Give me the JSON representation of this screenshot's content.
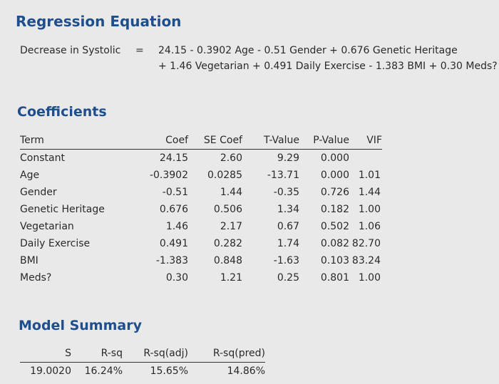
{
  "regression": {
    "title": "Regression Equation",
    "lhs": "Decrease in Systolic",
    "equals": "=",
    "line1": "24.15 - 0.3902 Age - 0.51 Gender + 0.676 Genetic Heritage",
    "line2": "+ 1.46 Vegetarian + 0.491 Daily Exercise - 1.383 BMI + 0.30 Meds?"
  },
  "coefficients": {
    "title": "Coefficients",
    "headers": [
      "Term",
      "Coef",
      "SE Coef",
      "T-Value",
      "P-Value",
      "VIF"
    ],
    "rows": [
      [
        "Constant",
        "24.15",
        "2.60",
        "9.29",
        "0.000",
        ""
      ],
      [
        "Age",
        "-0.3902",
        "0.0285",
        "-13.71",
        "0.000",
        "1.01"
      ],
      [
        "Gender",
        "-0.51",
        "1.44",
        "-0.35",
        "0.726",
        "1.44"
      ],
      [
        "Genetic Heritage",
        "0.676",
        "0.506",
        "1.34",
        "0.182",
        "1.00"
      ],
      [
        "Vegetarian",
        "1.46",
        "2.17",
        "0.67",
        "0.502",
        "1.06"
      ],
      [
        "Daily Exercise",
        "0.491",
        "0.282",
        "1.74",
        "0.082",
        "82.70"
      ],
      [
        "BMI",
        "-1.383",
        "0.848",
        "-1.63",
        "0.103",
        "83.24"
      ],
      [
        "Meds?",
        "0.30",
        "1.21",
        "0.25",
        "0.801",
        "1.00"
      ]
    ]
  },
  "model_summary": {
    "title": "Model Summary",
    "headers": [
      "S",
      "R-sq",
      "R-sq(adj)",
      "R-sq(pred)"
    ],
    "values": [
      "19.0020",
      "16.24%",
      "15.65%",
      "14.86%"
    ]
  }
}
